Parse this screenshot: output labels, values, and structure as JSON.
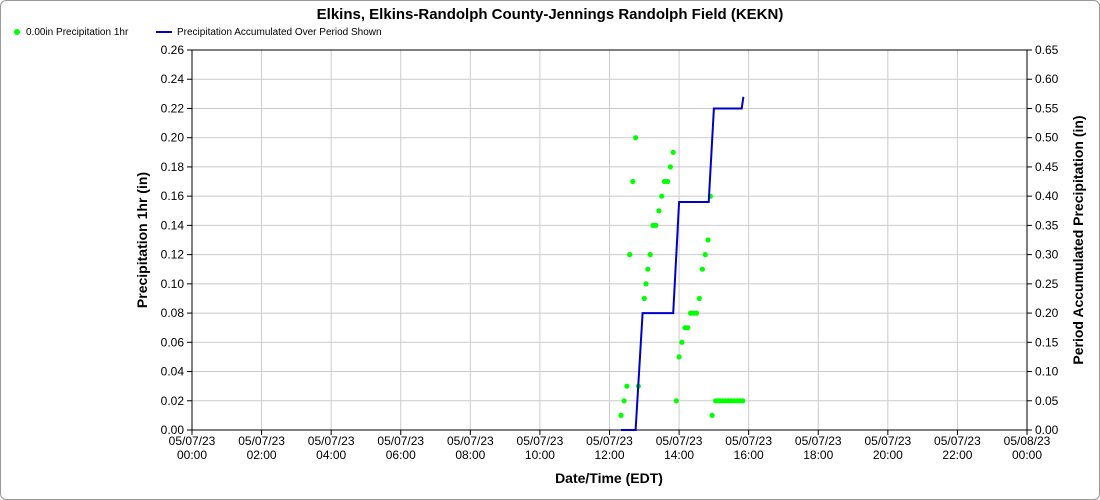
{
  "chart_data": {
    "type": "line",
    "title": "Elkins, Elkins-Randolph County-Jennings Randolph Field (KEKN)",
    "xlabel": "Date/Time (EDT)",
    "ylabel_left": "Precipitation 1hr (in)",
    "ylabel_right": "Period Accumulated Precipitation (in)",
    "x_ticks": [
      {
        "hour": 0,
        "date": "05/07/23",
        "time": "00:00"
      },
      {
        "hour": 2,
        "date": "05/07/23",
        "time": "02:00"
      },
      {
        "hour": 4,
        "date": "05/07/23",
        "time": "04:00"
      },
      {
        "hour": 6,
        "date": "05/07/23",
        "time": "06:00"
      },
      {
        "hour": 8,
        "date": "05/07/23",
        "time": "08:00"
      },
      {
        "hour": 10,
        "date": "05/07/23",
        "time": "10:00"
      },
      {
        "hour": 12,
        "date": "05/07/23",
        "time": "12:00"
      },
      {
        "hour": 14,
        "date": "05/07/23",
        "time": "14:00"
      },
      {
        "hour": 16,
        "date": "05/07/23",
        "time": "16:00"
      },
      {
        "hour": 18,
        "date": "05/07/23",
        "time": "18:00"
      },
      {
        "hour": 20,
        "date": "05/07/23",
        "time": "20:00"
      },
      {
        "hour": 22,
        "date": "05/07/23",
        "time": "22:00"
      },
      {
        "hour": 24,
        "date": "05/08/23",
        "time": "00:00"
      }
    ],
    "xlim": [
      0,
      24
    ],
    "ylim_left": [
      0,
      0.26
    ],
    "ylim_right": [
      0,
      0.65
    ],
    "y_ticks_left": [
      "0.00",
      "0.02",
      "0.04",
      "0.06",
      "0.08",
      "0.10",
      "0.12",
      "0.14",
      "0.16",
      "0.18",
      "0.20",
      "0.22",
      "0.24",
      "0.26"
    ],
    "y_ticks_right": [
      "0.00",
      "0.05",
      "0.10",
      "0.15",
      "0.20",
      "0.25",
      "0.30",
      "0.35",
      "0.40",
      "0.45",
      "0.50",
      "0.55",
      "0.60",
      "0.65"
    ],
    "grid": true,
    "legend_position": "top-left",
    "series": [
      {
        "name": "0.00in Precipitation 1hr",
        "axis": "left",
        "kind": "scatter",
        "color": "#00ff00",
        "points": [
          [
            12.33,
            0.01
          ],
          [
            12.42,
            0.02
          ],
          [
            12.5,
            0.03
          ],
          [
            12.58,
            0.12
          ],
          [
            12.67,
            0.17
          ],
          [
            12.75,
            0.2
          ],
          [
            12.83,
            0.03
          ],
          [
            13.0,
            0.09
          ],
          [
            13.05,
            0.1
          ],
          [
            13.1,
            0.11
          ],
          [
            13.17,
            0.12
          ],
          [
            13.25,
            0.14
          ],
          [
            13.33,
            0.14
          ],
          [
            13.42,
            0.15
          ],
          [
            13.5,
            0.16
          ],
          [
            13.58,
            0.17
          ],
          [
            13.67,
            0.17
          ],
          [
            13.75,
            0.18
          ],
          [
            13.83,
            0.19
          ],
          [
            13.92,
            0.02
          ],
          [
            14.0,
            0.05
          ],
          [
            14.08,
            0.06
          ],
          [
            14.17,
            0.07
          ],
          [
            14.25,
            0.07
          ],
          [
            14.33,
            0.08
          ],
          [
            14.42,
            0.08
          ],
          [
            14.5,
            0.08
          ],
          [
            14.58,
            0.09
          ],
          [
            14.67,
            0.11
          ],
          [
            14.75,
            0.12
          ],
          [
            14.83,
            0.13
          ],
          [
            14.9,
            0.16
          ],
          [
            14.95,
            0.01
          ],
          [
            15.05,
            0.02
          ],
          [
            15.1,
            0.02
          ],
          [
            15.17,
            0.02
          ],
          [
            15.25,
            0.02
          ],
          [
            15.33,
            0.02
          ],
          [
            15.42,
            0.02
          ],
          [
            15.5,
            0.02
          ],
          [
            15.58,
            0.02
          ],
          [
            15.67,
            0.02
          ],
          [
            15.75,
            0.02
          ],
          [
            15.83,
            0.02
          ]
        ]
      },
      {
        "name": "Precipitation Accumulated Over Period Shown",
        "axis": "right",
        "kind": "line",
        "color": "#0000cc",
        "points": [
          [
            12.33,
            0.0
          ],
          [
            12.75,
            0.0
          ],
          [
            12.95,
            0.2
          ],
          [
            13.83,
            0.2
          ],
          [
            14.0,
            0.39
          ],
          [
            14.85,
            0.39
          ],
          [
            15.0,
            0.55
          ],
          [
            15.8,
            0.55
          ],
          [
            15.85,
            0.57
          ]
        ]
      }
    ]
  },
  "legend": {
    "item1": "0.00in Precipitation 1hr",
    "item2": "Precipitation Accumulated Over Period Shown"
  }
}
